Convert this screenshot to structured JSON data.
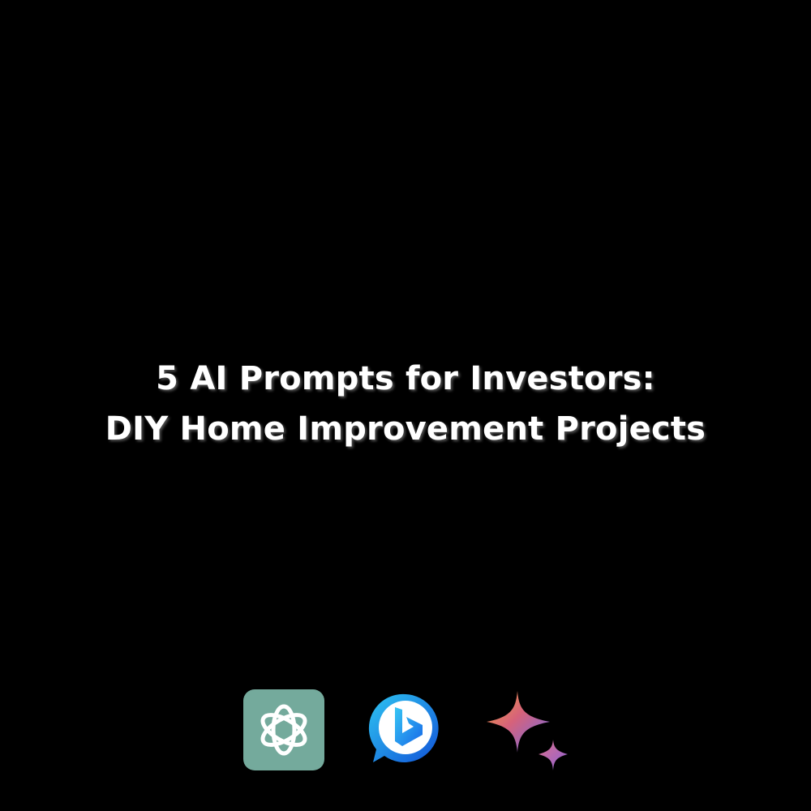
{
  "headline": {
    "line1": "5 AI Prompts for Investors:",
    "line2": "DIY Home Improvement Projects"
  },
  "logos": [
    {
      "icon": "chatgpt-logo-icon",
      "color": "#74aa9c"
    },
    {
      "icon": "bing-chat-logo-icon",
      "color": "#1b6ff0"
    },
    {
      "icon": "gemini-sparkle-logo-icon",
      "color": "#8b5cf6"
    }
  ],
  "colors": {
    "background": "#000000",
    "text": "#ffffff"
  }
}
